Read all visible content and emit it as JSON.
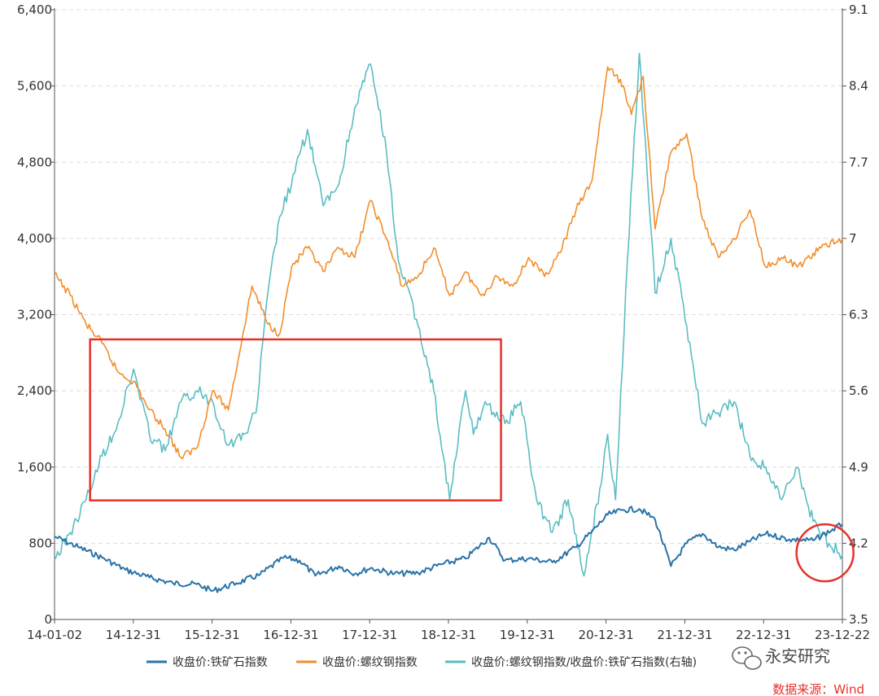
{
  "chart_data": {
    "type": "line",
    "title": "",
    "x_ticks": [
      "14-01-02",
      "14-12-31",
      "15-12-31",
      "16-12-31",
      "17-12-31",
      "18-12-31",
      "19-12-31",
      "20-12-31",
      "21-12-31",
      "22-12-31",
      "23-12-22"
    ],
    "left_axis": {
      "ylim": [
        0,
        6400
      ],
      "ticks": [
        "0",
        "800",
        "1,600",
        "2,400",
        "3,200",
        "4,000",
        "4,800",
        "5,600",
        "6,400"
      ]
    },
    "right_axis": {
      "ylim": [
        3.5,
        9.1
      ],
      "ticks": [
        "3.5",
        "4.2",
        "4.9",
        "5.6",
        "6.3",
        "7",
        "7.7",
        "8.4",
        "9.1"
      ]
    },
    "grid": true,
    "x_range": [
      2014.0,
      2023.97
    ],
    "series": [
      {
        "name": "收盘价:铁矿石指数",
        "axis": "left",
        "color": "#2a73a8",
        "x": [
          2014.0,
          2014.3,
          2014.6,
          2014.9,
          2015.2,
          2015.5,
          2015.8,
          2016.0,
          2016.3,
          2016.6,
          2016.9,
          2017.1,
          2017.3,
          2017.6,
          2017.8,
          2018.0,
          2018.3,
          2018.6,
          2018.9,
          2019.2,
          2019.5,
          2019.7,
          2020.0,
          2020.3,
          2020.6,
          2020.8,
          2021.0,
          2021.2,
          2021.4,
          2021.6,
          2021.8,
          2022.0,
          2022.2,
          2022.4,
          2022.6,
          2022.8,
          2023.0,
          2023.3,
          2023.6,
          2023.97
        ],
        "values": [
          870,
          760,
          650,
          520,
          440,
          380,
          370,
          300,
          380,
          470,
          650,
          620,
          460,
          560,
          480,
          540,
          480,
          490,
          580,
          640,
          860,
          620,
          640,
          600,
          760,
          920,
          1100,
          1150,
          1160,
          1050,
          560,
          800,
          900,
          760,
          730,
          820,
          900,
          840,
          830,
          1000
        ]
      },
      {
        "name": "收盘价:螺纹钢指数",
        "axis": "left",
        "color": "#f28e2b",
        "x": [
          2014.0,
          2014.2,
          2014.4,
          2014.6,
          2014.8,
          2015.0,
          2015.2,
          2015.4,
          2015.6,
          2015.8,
          2016.0,
          2016.2,
          2016.5,
          2016.7,
          2016.85,
          2017.0,
          2017.2,
          2017.4,
          2017.6,
          2017.8,
          2018.0,
          2018.2,
          2018.4,
          2018.6,
          2018.8,
          2019.0,
          2019.2,
          2019.4,
          2019.6,
          2019.8,
          2020.0,
          2020.2,
          2020.4,
          2020.6,
          2020.8,
          2021.0,
          2021.2,
          2021.3,
          2021.45,
          2021.6,
          2021.8,
          2022.0,
          2022.2,
          2022.4,
          2022.6,
          2022.8,
          2023.0,
          2023.2,
          2023.4,
          2023.7,
          2023.97
        ],
        "values": [
          3620,
          3400,
          3100,
          2900,
          2600,
          2500,
          2200,
          2000,
          1700,
          1800,
          2400,
          2200,
          3500,
          3100,
          3000,
          3700,
          3900,
          3650,
          3900,
          3800,
          4400,
          4000,
          3500,
          3600,
          3900,
          3400,
          3650,
          3400,
          3600,
          3500,
          3800,
          3600,
          3850,
          4300,
          4600,
          5800,
          5600,
          5300,
          5700,
          4100,
          4900,
          5100,
          4200,
          3800,
          4000,
          4300,
          3700,
          3800,
          3700,
          3900,
          4000
        ]
      },
      {
        "name": "收盘价:螺纹钢指数/收盘价:铁矿石指数(右轴)",
        "axis": "right",
        "color": "#5bbdc3",
        "x": [
          2014.0,
          2014.2,
          2014.4,
          2014.6,
          2014.8,
          2015.0,
          2015.2,
          2015.4,
          2015.6,
          2015.8,
          2016.0,
          2016.2,
          2016.4,
          2016.55,
          2016.7,
          2016.85,
          2017.0,
          2017.2,
          2017.4,
          2017.6,
          2017.8,
          2018.0,
          2018.2,
          2018.35,
          2018.6,
          2018.8,
          2019.0,
          2019.2,
          2019.3,
          2019.45,
          2019.7,
          2019.9,
          2020.1,
          2020.3,
          2020.5,
          2020.7,
          2020.9,
          2021.0,
          2021.1,
          2021.25,
          2021.4,
          2021.6,
          2021.8,
          2022.0,
          2022.2,
          2022.4,
          2022.6,
          2022.8,
          2023.0,
          2023.2,
          2023.4,
          2023.6,
          2023.8,
          2023.97
        ],
        "values": [
          4.05,
          4.3,
          4.6,
          5.0,
          5.3,
          5.8,
          5.2,
          5.05,
          5.5,
          5.6,
          5.5,
          5.1,
          5.2,
          5.4,
          6.5,
          7.2,
          7.5,
          8.0,
          7.3,
          7.5,
          8.2,
          8.6,
          7.8,
          6.8,
          6.2,
          5.6,
          4.6,
          5.6,
          5.2,
          5.5,
          5.3,
          5.5,
          4.6,
          4.3,
          4.6,
          3.9,
          4.7,
          5.2,
          4.6,
          6.8,
          8.7,
          6.5,
          7.0,
          6.2,
          5.3,
          5.4,
          5.5,
          5.0,
          4.9,
          4.6,
          4.9,
          4.4,
          4.2,
          4.1
        ]
      }
    ],
    "annotations": [
      {
        "type": "rectangle",
        "color": "#e8302a",
        "x_range": [
          2014.45,
          2019.65
        ],
        "y_range": [
          1250,
          2940
        ]
      },
      {
        "type": "circle",
        "color": "#e8302a",
        "center": [
          2023.75,
          700
        ]
      }
    ]
  },
  "legend": [
    {
      "label": "收盘价:铁矿石指数",
      "color": "#2a73a8"
    },
    {
      "label": "收盘价:螺纹钢指数",
      "color": "#f28e2b"
    },
    {
      "label": "收盘价:螺纹钢指数/收盘价:铁矿石指数(右轴)",
      "color": "#5bbdc3"
    }
  ],
  "brand": "永安研究",
  "brand_icon": "wechat-icon",
  "source": "数据来源：Wind"
}
